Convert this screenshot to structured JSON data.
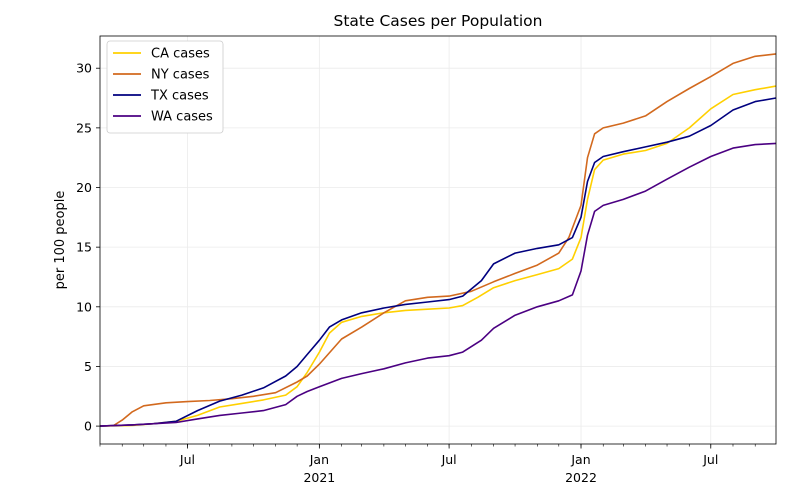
{
  "chart_data": {
    "type": "line",
    "title": "State Cases per Population",
    "xlabel": "",
    "ylabel": "per 100 people",
    "xlim": [
      "2020-03-01",
      "2022-09-30"
    ],
    "ylim": [
      -1.5,
      32.7
    ],
    "grid": true,
    "legend_position": "top-left",
    "x_ticks": [
      {
        "date": "2020-07-01",
        "label": "Jul",
        "sublabel": ""
      },
      {
        "date": "2021-01-01",
        "label": "Jan",
        "sublabel": "2021"
      },
      {
        "date": "2021-07-01",
        "label": "Jul",
        "sublabel": ""
      },
      {
        "date": "2022-01-01",
        "label": "Jan",
        "sublabel": "2022"
      },
      {
        "date": "2022-07-01",
        "label": "Jul",
        "sublabel": ""
      }
    ],
    "y_ticks": [
      0,
      5,
      10,
      15,
      20,
      25,
      30
    ],
    "series": [
      {
        "name": "CA cases",
        "color": "#FFD000",
        "points": [
          [
            "2020-03-01",
            0
          ],
          [
            "2020-04-15",
            0.05
          ],
          [
            "2020-05-15",
            0.2
          ],
          [
            "2020-06-15",
            0.4
          ],
          [
            "2020-07-15",
            0.9
          ],
          [
            "2020-08-15",
            1.6
          ],
          [
            "2020-09-15",
            1.9
          ],
          [
            "2020-10-15",
            2.2
          ],
          [
            "2020-11-15",
            2.6
          ],
          [
            "2020-12-01",
            3.3
          ],
          [
            "2020-12-15",
            4.5
          ],
          [
            "2021-01-01",
            6.2
          ],
          [
            "2021-01-15",
            7.8
          ],
          [
            "2021-02-01",
            8.7
          ],
          [
            "2021-03-01",
            9.2
          ],
          [
            "2021-04-01",
            9.5
          ],
          [
            "2021-05-01",
            9.7
          ],
          [
            "2021-06-01",
            9.8
          ],
          [
            "2021-07-01",
            9.9
          ],
          [
            "2021-07-20",
            10.1
          ],
          [
            "2021-08-10",
            10.8
          ],
          [
            "2021-09-01",
            11.6
          ],
          [
            "2021-10-01",
            12.2
          ],
          [
            "2021-11-01",
            12.7
          ],
          [
            "2021-12-01",
            13.2
          ],
          [
            "2021-12-20",
            14.0
          ],
          [
            "2022-01-01",
            15.8
          ],
          [
            "2022-01-10",
            19.0
          ],
          [
            "2022-01-20",
            21.5
          ],
          [
            "2022-02-01",
            22.3
          ],
          [
            "2022-03-01",
            22.8
          ],
          [
            "2022-04-01",
            23.1
          ],
          [
            "2022-05-01",
            23.7
          ],
          [
            "2022-06-01",
            25.0
          ],
          [
            "2022-07-01",
            26.6
          ],
          [
            "2022-08-01",
            27.8
          ],
          [
            "2022-09-01",
            28.2
          ],
          [
            "2022-09-30",
            28.5
          ]
        ]
      },
      {
        "name": "NY cases",
        "color": "#D2691E",
        "points": [
          [
            "2020-03-01",
            0
          ],
          [
            "2020-03-20",
            0.05
          ],
          [
            "2020-04-01",
            0.5
          ],
          [
            "2020-04-15",
            1.2
          ],
          [
            "2020-05-01",
            1.7
          ],
          [
            "2020-06-01",
            1.95
          ],
          [
            "2020-07-01",
            2.05
          ],
          [
            "2020-08-01",
            2.15
          ],
          [
            "2020-09-01",
            2.3
          ],
          [
            "2020-10-01",
            2.5
          ],
          [
            "2020-11-01",
            2.8
          ],
          [
            "2020-12-01",
            3.7
          ],
          [
            "2020-12-15",
            4.2
          ],
          [
            "2021-01-01",
            5.2
          ],
          [
            "2021-02-01",
            7.3
          ],
          [
            "2021-03-01",
            8.3
          ],
          [
            "2021-04-01",
            9.5
          ],
          [
            "2021-05-01",
            10.5
          ],
          [
            "2021-06-01",
            10.8
          ],
          [
            "2021-07-01",
            10.9
          ],
          [
            "2021-08-01",
            11.3
          ],
          [
            "2021-09-01",
            12.1
          ],
          [
            "2021-10-01",
            12.8
          ],
          [
            "2021-11-01",
            13.5
          ],
          [
            "2021-12-01",
            14.5
          ],
          [
            "2021-12-15",
            15.8
          ],
          [
            "2022-01-01",
            18.5
          ],
          [
            "2022-01-10",
            22.5
          ],
          [
            "2022-01-20",
            24.5
          ],
          [
            "2022-02-01",
            25.0
          ],
          [
            "2022-03-01",
            25.4
          ],
          [
            "2022-04-01",
            26.0
          ],
          [
            "2022-05-01",
            27.2
          ],
          [
            "2022-06-01",
            28.3
          ],
          [
            "2022-07-01",
            29.3
          ],
          [
            "2022-08-01",
            30.4
          ],
          [
            "2022-09-01",
            31.0
          ],
          [
            "2022-09-30",
            31.2
          ]
        ]
      },
      {
        "name": "TX cases",
        "color": "#00007F",
        "points": [
          [
            "2020-03-01",
            0
          ],
          [
            "2020-04-15",
            0.1
          ],
          [
            "2020-05-15",
            0.2
          ],
          [
            "2020-06-15",
            0.4
          ],
          [
            "2020-07-15",
            1.3
          ],
          [
            "2020-08-15",
            2.1
          ],
          [
            "2020-09-15",
            2.6
          ],
          [
            "2020-10-15",
            3.2
          ],
          [
            "2020-11-15",
            4.2
          ],
          [
            "2020-12-01",
            5.0
          ],
          [
            "2020-12-15",
            6.0
          ],
          [
            "2021-01-01",
            7.2
          ],
          [
            "2021-01-15",
            8.3
          ],
          [
            "2021-02-01",
            8.9
          ],
          [
            "2021-03-01",
            9.5
          ],
          [
            "2021-04-01",
            9.9
          ],
          [
            "2021-05-01",
            10.2
          ],
          [
            "2021-06-01",
            10.4
          ],
          [
            "2021-07-01",
            10.6
          ],
          [
            "2021-07-20",
            10.9
          ],
          [
            "2021-08-15",
            12.2
          ],
          [
            "2021-09-01",
            13.6
          ],
          [
            "2021-10-01",
            14.5
          ],
          [
            "2021-11-01",
            14.9
          ],
          [
            "2021-12-01",
            15.2
          ],
          [
            "2021-12-20",
            15.8
          ],
          [
            "2022-01-01",
            17.5
          ],
          [
            "2022-01-10",
            20.5
          ],
          [
            "2022-01-20",
            22.1
          ],
          [
            "2022-02-01",
            22.6
          ],
          [
            "2022-03-01",
            23.0
          ],
          [
            "2022-04-01",
            23.4
          ],
          [
            "2022-05-01",
            23.8
          ],
          [
            "2022-06-01",
            24.3
          ],
          [
            "2022-07-01",
            25.2
          ],
          [
            "2022-08-01",
            26.5
          ],
          [
            "2022-09-01",
            27.2
          ],
          [
            "2022-09-30",
            27.5
          ]
        ]
      },
      {
        "name": "WA cases",
        "color": "#4B0082",
        "points": [
          [
            "2020-03-01",
            0
          ],
          [
            "2020-04-15",
            0.1
          ],
          [
            "2020-05-15",
            0.2
          ],
          [
            "2020-06-15",
            0.3
          ],
          [
            "2020-07-15",
            0.6
          ],
          [
            "2020-08-15",
            0.9
          ],
          [
            "2020-09-15",
            1.1
          ],
          [
            "2020-10-15",
            1.3
          ],
          [
            "2020-11-15",
            1.8
          ],
          [
            "2020-12-01",
            2.5
          ],
          [
            "2020-12-15",
            2.9
          ],
          [
            "2021-01-01",
            3.3
          ],
          [
            "2021-02-01",
            4.0
          ],
          [
            "2021-03-01",
            4.4
          ],
          [
            "2021-04-01",
            4.8
          ],
          [
            "2021-05-01",
            5.3
          ],
          [
            "2021-06-01",
            5.7
          ],
          [
            "2021-07-01",
            5.9
          ],
          [
            "2021-07-20",
            6.2
          ],
          [
            "2021-08-15",
            7.2
          ],
          [
            "2021-09-01",
            8.2
          ],
          [
            "2021-10-01",
            9.3
          ],
          [
            "2021-11-01",
            10.0
          ],
          [
            "2021-12-01",
            10.5
          ],
          [
            "2021-12-20",
            11.0
          ],
          [
            "2022-01-01",
            13.0
          ],
          [
            "2022-01-10",
            16.0
          ],
          [
            "2022-01-20",
            18.0
          ],
          [
            "2022-02-01",
            18.5
          ],
          [
            "2022-03-01",
            19.0
          ],
          [
            "2022-04-01",
            19.7
          ],
          [
            "2022-05-01",
            20.7
          ],
          [
            "2022-06-01",
            21.7
          ],
          [
            "2022-07-01",
            22.6
          ],
          [
            "2022-08-01",
            23.3
          ],
          [
            "2022-09-01",
            23.6
          ],
          [
            "2022-09-30",
            23.7
          ]
        ]
      }
    ]
  }
}
